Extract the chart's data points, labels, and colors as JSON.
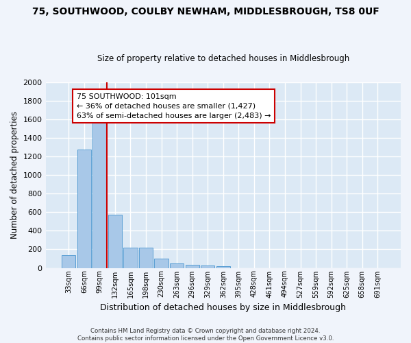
{
  "title1": "75, SOUTHWOOD, COULBY NEWHAM, MIDDLESBROUGH, TS8 0UF",
  "title2": "Size of property relative to detached houses in Middlesbrough",
  "xlabel": "Distribution of detached houses by size in Middlesbrough",
  "ylabel": "Number of detached properties",
  "bar_values": [
    140,
    1270,
    1570,
    570,
    215,
    215,
    100,
    50,
    30,
    25,
    20,
    0,
    0,
    0,
    0,
    0,
    0,
    0,
    0,
    0,
    0
  ],
  "bar_labels": [
    "33sqm",
    "66sqm",
    "99sqm",
    "132sqm",
    "165sqm",
    "198sqm",
    "230sqm",
    "263sqm",
    "296sqm",
    "329sqm",
    "362sqm",
    "395sqm",
    "428sqm",
    "461sqm",
    "494sqm",
    "527sqm",
    "559sqm",
    "592sqm",
    "625sqm",
    "658sqm",
    "691sqm"
  ],
  "bar_color": "#a8c8e8",
  "bar_edge_color": "#5a9fd4",
  "background_color": "#dce9f5",
  "fig_background_color": "#f0f4fb",
  "grid_color": "#ffffff",
  "vline_color": "#cc0000",
  "vline_x_index": 2,
  "annotation_line1": "75 SOUTHWOOD: 101sqm",
  "annotation_line2": "← 36% of detached houses are smaller (1,427)",
  "annotation_line3": "63% of semi-detached houses are larger (2,483) →",
  "annotation_box_color": "#ffffff",
  "annotation_box_edge": "#cc0000",
  "ylim": [
    0,
    2000
  ],
  "yticks": [
    0,
    200,
    400,
    600,
    800,
    1000,
    1200,
    1400,
    1600,
    1800,
    2000
  ],
  "footer": "Contains HM Land Registry data © Crown copyright and database right 2024.\nContains public sector information licensed under the Open Government Licence v3.0."
}
